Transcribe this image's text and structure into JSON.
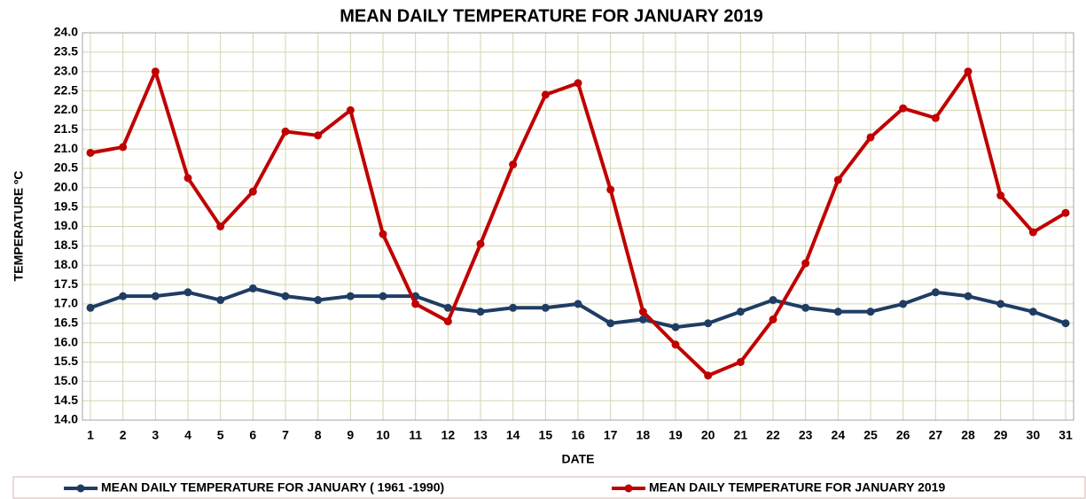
{
  "chart_data": {
    "type": "line",
    "title": "MEAN DAILY TEMPERATURE FOR JANUARY 2019",
    "xlabel": "DATE",
    "ylabel": "TEMPERATURE ºC",
    "categories": [
      "1",
      "2",
      "3",
      "4",
      "5",
      "6",
      "7",
      "8",
      "9",
      "10",
      "11",
      "12",
      "13",
      "14",
      "15",
      "16",
      "17",
      "18",
      "19",
      "20",
      "21",
      "22",
      "23",
      "24",
      "25",
      "26",
      "27",
      "28",
      "29",
      "30",
      "31"
    ],
    "series": [
      {
        "name": "MEAN DAILY TEMPERATURE FOR JANUARY ( 1961 -1990)",
        "color": "#1f3d63",
        "values": [
          16.9,
          17.2,
          17.2,
          17.3,
          17.1,
          17.4,
          17.2,
          17.1,
          17.2,
          17.2,
          17.2,
          16.9,
          16.8,
          16.9,
          16.9,
          17.0,
          16.5,
          16.6,
          16.4,
          16.5,
          16.8,
          17.1,
          16.9,
          16.8,
          16.8,
          17.0,
          17.3,
          17.2,
          17.0,
          16.8,
          16.5
        ]
      },
      {
        "name": "MEAN DAILY TEMPERATURE FOR JANUARY 2019",
        "color": "#c00000",
        "values": [
          20.9,
          21.05,
          23.0,
          20.25,
          19.0,
          19.9,
          21.45,
          21.35,
          22.0,
          18.8,
          17.0,
          16.55,
          18.55,
          20.6,
          22.4,
          22.7,
          19.95,
          16.8,
          15.95,
          15.15,
          15.5,
          16.6,
          18.05,
          20.2,
          21.3,
          22.05,
          21.8,
          23.0,
          19.8,
          18.85,
          19.35
        ]
      }
    ],
    "ylim": [
      14,
      24
    ],
    "yticks": [
      {
        "value": 14,
        "label": "14.0"
      },
      14.5,
      {
        "value": 15,
        "label": "15.0"
      },
      15.5,
      {
        "value": 16,
        "label": "16.0"
      },
      16.5,
      {
        "value": 17,
        "label": "17.0"
      },
      17.5,
      {
        "value": 18,
        "label": "18.0"
      },
      18.5,
      {
        "value": 19,
        "label": "19.0"
      },
      19.5,
      {
        "value": 20,
        "label": "20.0"
      },
      20.5,
      {
        "value": 21,
        "label": "21.0"
      },
      21.5,
      {
        "value": 22,
        "label": "22.0"
      },
      22.5,
      {
        "value": 23,
        "label": "23.0"
      },
      23.5,
      {
        "value": 24,
        "label": "24.0"
      }
    ],
    "grid": true,
    "legend": "bottom"
  }
}
